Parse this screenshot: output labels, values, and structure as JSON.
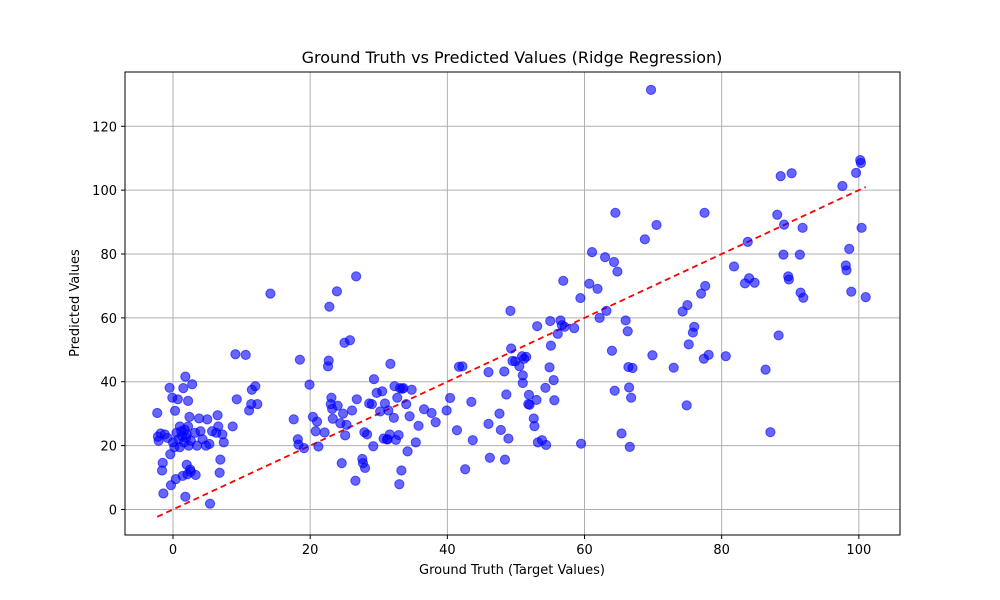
{
  "chart_data": {
    "type": "scatter",
    "title": "Ground Truth vs Predicted Values (Ridge Regression)",
    "xlabel": "Ground Truth (Target Values)",
    "ylabel": "Predicted Values",
    "xlim": [
      -7,
      106
    ],
    "ylim": [
      -8,
      137
    ],
    "xticks": [
      0,
      20,
      40,
      60,
      80,
      100
    ],
    "yticks": [
      0,
      20,
      40,
      60,
      80,
      100,
      120
    ],
    "grid": true,
    "series": [
      {
        "marker_color": "#0000ff",
        "marker_opacity": 0.6,
        "points": [
          [
            -2.3,
            30.2
          ],
          [
            -2.2,
            22.8
          ],
          [
            -2.1,
            21.5
          ],
          [
            -1.8,
            23.8
          ],
          [
            -1.6,
            12.2
          ],
          [
            -1.5,
            14.6
          ],
          [
            -1.4,
            5.0
          ],
          [
            -1.2,
            23.5
          ],
          [
            -0.8,
            22.4
          ],
          [
            -0.5,
            38.1
          ],
          [
            -0.4,
            17.3
          ],
          [
            -0.3,
            7.6
          ],
          [
            -0.1,
            35.0
          ],
          [
            0.0,
            21.0
          ],
          [
            0.2,
            19.5
          ],
          [
            0.3,
            30.9
          ],
          [
            0.4,
            9.5
          ],
          [
            0.5,
            24.0
          ],
          [
            0.7,
            34.5
          ],
          [
            0.8,
            22.0
          ],
          [
            1.0,
            26.0
          ],
          [
            1.0,
            19.5
          ],
          [
            1.2,
            24.5
          ],
          [
            1.3,
            23.0
          ],
          [
            1.4,
            10.5
          ],
          [
            1.5,
            38.0
          ],
          [
            1.6,
            21.0
          ],
          [
            1.7,
            25.0
          ],
          [
            1.8,
            41.6
          ],
          [
            1.8,
            4.0
          ],
          [
            1.9,
            22.5
          ],
          [
            2.0,
            14.0
          ],
          [
            2.0,
            23.5
          ],
          [
            2.1,
            11.0
          ],
          [
            2.2,
            34.0
          ],
          [
            2.2,
            26.0
          ],
          [
            2.3,
            20.0
          ],
          [
            2.4,
            29.0
          ],
          [
            2.5,
            12.5
          ],
          [
            2.6,
            21.5
          ],
          [
            2.6,
            11.8
          ],
          [
            2.8,
            39.2
          ],
          [
            3.2,
            24.0
          ],
          [
            3.3,
            10.8
          ],
          [
            3.5,
            20.0
          ],
          [
            3.8,
            28.5
          ],
          [
            4.0,
            24.5
          ],
          [
            4.3,
            22.0
          ],
          [
            4.8,
            20.0
          ],
          [
            5.0,
            28.2
          ],
          [
            5.3,
            20.5
          ],
          [
            5.4,
            1.8
          ],
          [
            5.7,
            24.5
          ],
          [
            6.3,
            24.0
          ],
          [
            6.5,
            29.5
          ],
          [
            6.6,
            26.0
          ],
          [
            6.8,
            11.5
          ],
          [
            6.9,
            15.6
          ],
          [
            7.2,
            23.5
          ],
          [
            7.4,
            21.0
          ],
          [
            8.7,
            26.0
          ],
          [
            9.1,
            48.6
          ],
          [
            9.3,
            34.5
          ],
          [
            10.6,
            48.4
          ],
          [
            11.1,
            31.0
          ],
          [
            11.4,
            33.0
          ],
          [
            11.5,
            37.5
          ],
          [
            12.0,
            38.6
          ],
          [
            12.3,
            33.0
          ],
          [
            14.2,
            67.6
          ],
          [
            17.6,
            28.2
          ],
          [
            18.2,
            22.0
          ],
          [
            18.3,
            20.3
          ],
          [
            18.5,
            46.9
          ],
          [
            19.1,
            19.2
          ],
          [
            19.9,
            39.1
          ],
          [
            20.4,
            29.0
          ],
          [
            20.8,
            24.5
          ],
          [
            21.0,
            27.5
          ],
          [
            21.2,
            19.7
          ],
          [
            22.1,
            24.1
          ],
          [
            22.6,
            44.8
          ],
          [
            22.7,
            46.6
          ],
          [
            22.8,
            63.5
          ],
          [
            23.0,
            33.0
          ],
          [
            23.1,
            35.0
          ],
          [
            23.2,
            31.5
          ],
          [
            23.3,
            28.4
          ],
          [
            23.9,
            68.3
          ],
          [
            24.0,
            32.5
          ],
          [
            24.4,
            27.0
          ],
          [
            24.6,
            14.5
          ],
          [
            24.8,
            30.0
          ],
          [
            25.0,
            52.2
          ],
          [
            25.1,
            23.2
          ],
          [
            25.3,
            26.5
          ],
          [
            25.8,
            53.0
          ],
          [
            26.1,
            31.0
          ],
          [
            26.6,
            9.0
          ],
          [
            26.7,
            73.0
          ],
          [
            26.8,
            34.5
          ],
          [
            27.6,
            15.8
          ],
          [
            27.7,
            14.5
          ],
          [
            27.9,
            24.2
          ],
          [
            28.0,
            13.0
          ],
          [
            28.3,
            23.5
          ],
          [
            28.6,
            33.2
          ],
          [
            29.0,
            33.0
          ],
          [
            29.2,
            19.8
          ],
          [
            29.3,
            40.8
          ],
          [
            29.7,
            36.5
          ],
          [
            30.2,
            30.7
          ],
          [
            30.5,
            37.0
          ],
          [
            30.7,
            22.2
          ],
          [
            30.9,
            33.2
          ],
          [
            31.2,
            21.9
          ],
          [
            31.3,
            22.0
          ],
          [
            31.4,
            31.0
          ],
          [
            31.6,
            23.5
          ],
          [
            31.7,
            45.6
          ],
          [
            32.2,
            28.7
          ],
          [
            32.3,
            38.6
          ],
          [
            32.5,
            21.8
          ],
          [
            32.7,
            35.0
          ],
          [
            32.9,
            23.3
          ],
          [
            33.0,
            7.9
          ],
          [
            33.1,
            38.0
          ],
          [
            33.3,
            12.2
          ],
          [
            33.4,
            37.8
          ],
          [
            33.6,
            38.0
          ],
          [
            34.0,
            33.0
          ],
          [
            34.2,
            18.2
          ],
          [
            34.5,
            29.2
          ],
          [
            34.8,
            37.5
          ],
          [
            35.4,
            21.0
          ],
          [
            35.8,
            26.2
          ],
          [
            36.6,
            31.4
          ],
          [
            37.7,
            30.2
          ],
          [
            38.3,
            27.3
          ],
          [
            39.9,
            31.0
          ],
          [
            40.4,
            34.9
          ],
          [
            41.4,
            24.8
          ],
          [
            41.7,
            44.7
          ],
          [
            42.2,
            44.8
          ],
          [
            42.6,
            12.6
          ],
          [
            43.5,
            33.7
          ],
          [
            43.7,
            21.7
          ],
          [
            46.0,
            43.0
          ],
          [
            46.0,
            26.8
          ],
          [
            46.2,
            16.2
          ],
          [
            47.6,
            30.0
          ],
          [
            47.8,
            24.9
          ],
          [
            48.3,
            43.2
          ],
          [
            48.4,
            15.6
          ],
          [
            48.6,
            36.0
          ],
          [
            48.9,
            22.2
          ],
          [
            49.2,
            62.2
          ],
          [
            49.3,
            50.4
          ],
          [
            49.5,
            46.5
          ],
          [
            49.9,
            46.4
          ],
          [
            50.5,
            44.9
          ],
          [
            50.9,
            48.0
          ],
          [
            51.0,
            42.0
          ],
          [
            51.0,
            39.6
          ],
          [
            51.2,
            47.2
          ],
          [
            51.5,
            47.8
          ],
          [
            51.8,
            33.0
          ],
          [
            51.9,
            35.9
          ],
          [
            52.0,
            32.8
          ],
          [
            52.6,
            28.5
          ],
          [
            52.7,
            26.1
          ],
          [
            53.0,
            34.3
          ],
          [
            53.1,
            57.4
          ],
          [
            53.2,
            21.0
          ],
          [
            53.8,
            21.7
          ],
          [
            54.3,
            38.1
          ],
          [
            54.4,
            20.2
          ],
          [
            54.9,
            44.5
          ],
          [
            55.0,
            59.0
          ],
          [
            55.1,
            51.3
          ],
          [
            55.5,
            40.5
          ],
          [
            55.6,
            34.2
          ],
          [
            56.1,
            55.0
          ],
          [
            56.5,
            59.2
          ],
          [
            56.7,
            57.7
          ],
          [
            56.9,
            71.6
          ],
          [
            57.1,
            57.2
          ],
          [
            58.5,
            56.8
          ],
          [
            59.4,
            66.2
          ],
          [
            59.5,
            20.6
          ],
          [
            60.7,
            70.7
          ],
          [
            61.1,
            80.6
          ],
          [
            61.9,
            69.1
          ],
          [
            62.2,
            60.0
          ],
          [
            63.0,
            79.0
          ],
          [
            63.2,
            62.2
          ],
          [
            64.0,
            49.7
          ],
          [
            64.3,
            77.5
          ],
          [
            64.5,
            92.9
          ],
          [
            64.8,
            74.5
          ],
          [
            64.4,
            37.2
          ],
          [
            65.4,
            23.8
          ],
          [
            66.0,
            59.2
          ],
          [
            66.3,
            55.8
          ],
          [
            66.4,
            44.6
          ],
          [
            66.5,
            38.2
          ],
          [
            66.6,
            19.6
          ],
          [
            66.8,
            35.0
          ],
          [
            67.0,
            44.3
          ],
          [
            68.8,
            84.6
          ],
          [
            69.7,
            131.4
          ],
          [
            69.9,
            48.3
          ],
          [
            70.5,
            89.1
          ],
          [
            73.0,
            44.4
          ],
          [
            74.3,
            62.0
          ],
          [
            74.9,
            32.6
          ],
          [
            75.0,
            64.0
          ],
          [
            75.2,
            51.7
          ],
          [
            75.8,
            55.4
          ],
          [
            76.0,
            57.2
          ],
          [
            77.0,
            67.6
          ],
          [
            77.4,
            47.2
          ],
          [
            77.5,
            92.9
          ],
          [
            77.6,
            70.0
          ],
          [
            78.1,
            48.4
          ],
          [
            80.6,
            48.0
          ],
          [
            81.8,
            76.1
          ],
          [
            83.4,
            70.8
          ],
          [
            83.8,
            83.8
          ],
          [
            84.0,
            72.4
          ],
          [
            84.8,
            71.0
          ],
          [
            86.4,
            43.8
          ],
          [
            87.1,
            24.2
          ],
          [
            88.1,
            92.3
          ],
          [
            88.3,
            54.5
          ],
          [
            88.6,
            104.4
          ],
          [
            89.0,
            79.8
          ],
          [
            89.1,
            89.2
          ],
          [
            89.7,
            73.0
          ],
          [
            89.8,
            72.0
          ],
          [
            90.2,
            105.3
          ],
          [
            91.4,
            79.8
          ],
          [
            91.5,
            67.9
          ],
          [
            91.8,
            88.2
          ],
          [
            91.9,
            66.3
          ],
          [
            97.6,
            101.3
          ],
          [
            98.1,
            76.4
          ],
          [
            98.2,
            74.9
          ],
          [
            98.6,
            81.6
          ],
          [
            98.9,
            68.2
          ],
          [
            99.6,
            105.4
          ],
          [
            100.2,
            109.4
          ],
          [
            100.3,
            108.5
          ],
          [
            100.4,
            88.2
          ],
          [
            101.0,
            66.5
          ]
        ]
      }
    ],
    "reference_line": {
      "style": "dashed",
      "color": "#ff0000",
      "from": [
        -2.3,
        -2.3
      ],
      "to": [
        101.0,
        101.0
      ]
    }
  }
}
